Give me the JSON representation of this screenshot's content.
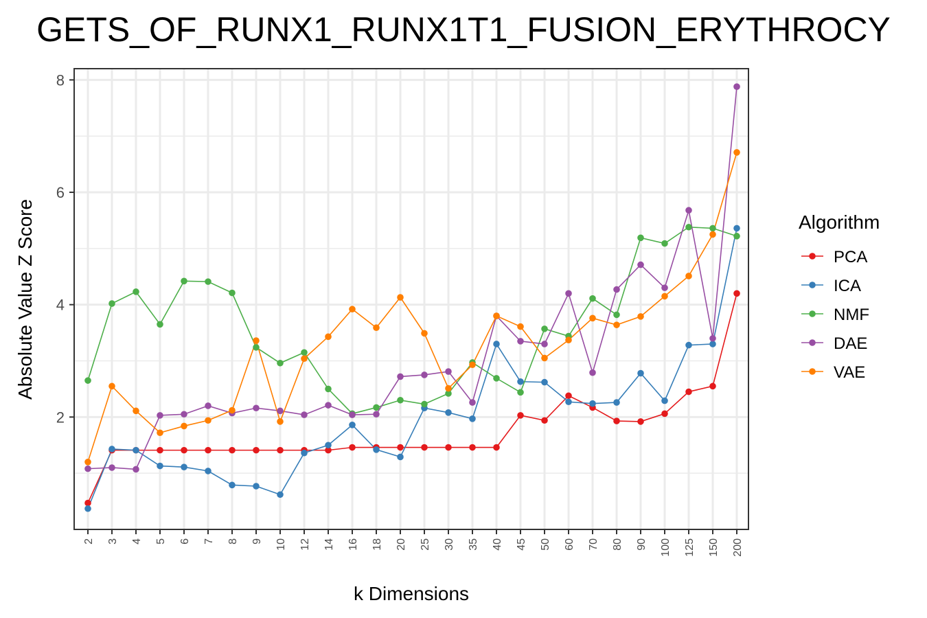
{
  "chart_data": {
    "type": "line",
    "title": "GETS_OF_RUNX1_RUNX1T1_FUSION_ERYTHROCY",
    "xlabel": "k Dimensions",
    "ylabel": "Absolute Value Z Score",
    "ylim": [
      0,
      8.2
    ],
    "yticks": [
      2,
      4,
      6,
      8
    ],
    "grid": true,
    "legend": {
      "title": "Algorithm",
      "position": "right"
    },
    "categories": [
      "2",
      "3",
      "4",
      "5",
      "6",
      "7",
      "8",
      "9",
      "10",
      "12",
      "14",
      "16",
      "18",
      "20",
      "25",
      "30",
      "35",
      "40",
      "45",
      "50",
      "60",
      "70",
      "80",
      "90",
      "100",
      "125",
      "150",
      "200"
    ],
    "series": [
      {
        "name": "PCA",
        "color": "#e41a1c",
        "values": [
          0.47,
          1.41,
          1.41,
          1.41,
          1.41,
          1.41,
          1.41,
          1.41,
          1.41,
          1.41,
          1.41,
          1.46,
          1.46,
          1.46,
          1.46,
          1.46,
          1.46,
          1.46,
          2.03,
          1.94,
          2.38,
          2.17,
          1.93,
          1.92,
          2.06,
          2.45,
          2.55,
          4.2
        ]
      },
      {
        "name": "ICA",
        "color": "#377eb8",
        "values": [
          0.37,
          1.43,
          1.41,
          1.13,
          1.11,
          1.04,
          0.79,
          0.77,
          0.62,
          1.36,
          1.5,
          1.86,
          1.42,
          1.29,
          2.16,
          2.08,
          1.97,
          3.3,
          2.63,
          2.62,
          2.27,
          2.24,
          2.26,
          2.78,
          2.29,
          3.28,
          3.3,
          5.36
        ]
      },
      {
        "name": "NMF",
        "color": "#4daf4a",
        "values": [
          2.65,
          4.02,
          4.23,
          3.65,
          4.42,
          4.41,
          4.21,
          3.24,
          2.96,
          3.15,
          2.5,
          2.06,
          2.17,
          2.3,
          2.23,
          2.42,
          2.97,
          2.69,
          2.44,
          3.57,
          3.44,
          4.11,
          3.82,
          5.19,
          5.09,
          5.38,
          5.36,
          5.22
        ]
      },
      {
        "name": "DAE",
        "color": "#984ea3",
        "values": [
          1.08,
          1.1,
          1.07,
          2.03,
          2.05,
          2.2,
          2.07,
          2.16,
          2.11,
          2.04,
          2.21,
          2.04,
          2.05,
          2.72,
          2.75,
          2.81,
          2.26,
          3.8,
          3.35,
          3.3,
          4.2,
          2.79,
          4.27,
          4.71,
          4.3,
          5.68,
          3.4,
          7.88
        ]
      },
      {
        "name": "VAE",
        "color": "#ff7f00",
        "values": [
          1.2,
          2.55,
          2.11,
          1.72,
          1.84,
          1.94,
          2.12,
          3.36,
          1.92,
          3.04,
          3.43,
          3.92,
          3.59,
          4.13,
          3.49,
          2.51,
          2.93,
          3.8,
          3.61,
          3.05,
          3.37,
          3.76,
          3.64,
          3.79,
          4.15,
          4.51,
          5.25,
          6.71
        ]
      }
    ]
  }
}
